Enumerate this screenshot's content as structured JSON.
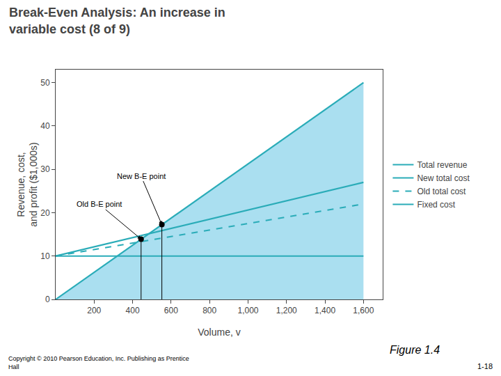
{
  "chart_data": {
    "type": "line",
    "title": "Break-Even Analysis: An increase in\nvariable cost (8 of 9)",
    "xlabel": "Volume, v",
    "ylabel": "Revenue, cost,\nand profit ($1,000s)",
    "x": [
      0,
      200,
      400,
      600,
      800,
      1000,
      1200,
      1400,
      1600
    ],
    "series": [
      {
        "type": "area",
        "color": "#AADFF0",
        "values": [
          0,
          6.25,
          12.5,
          18.75,
          25.0,
          31.25,
          37.5,
          43.75,
          50.0
        ]
      },
      {
        "name": "Total revenue",
        "type": "line",
        "color": "#2AACB8",
        "line_style": "solid",
        "values": [
          0,
          6.25,
          12.5,
          18.75,
          25.0,
          31.25,
          37.5,
          43.75,
          50.0
        ]
      },
      {
        "name": "New total cost",
        "type": "line",
        "color": "#2AACB8",
        "line_style": "solid",
        "values": [
          10,
          12.125,
          14.25,
          16.375,
          18.5,
          20.625,
          22.75,
          24.875,
          27.0
        ]
      },
      {
        "name": "Old total cost",
        "type": "line",
        "color": "#2AACB8",
        "line_style": "dashed",
        "values": [
          10,
          11.5,
          13.0,
          14.5,
          16.0,
          17.5,
          19.0,
          20.5,
          22.0
        ]
      },
      {
        "name": "Fixed cost",
        "type": "line",
        "color": "#2AACB8",
        "line_style": "solid",
        "values": [
          10,
          10,
          10,
          10,
          10,
          10,
          10,
          10,
          10
        ]
      },
      {
        "type": "scatter",
        "color": "#000000",
        "marker": "circle",
        "x": [
          444,
          552
        ],
        "values": [
          13.9,
          17.25
        ]
      }
    ],
    "annotations": [
      {
        "text": "Old B-E point",
        "x": 444,
        "y": 13.9
      },
      {
        "text": "New B-E point",
        "x": 552,
        "y": 17.25
      }
    ],
    "figure_label": "Figure 1.4",
    "copyright": "Copyright © 2010 Pearson Education, Inc. Publishing as Prentice\nHall",
    "page_number": "1-18",
    "xlim": [
      0,
      1700
    ],
    "xticks": [
      200,
      400,
      600,
      800,
      {
        "value": 1000,
        "label": "1,000"
      },
      {
        "value": 1200,
        "label": "1,200"
      },
      {
        "value": 1400,
        "label": "1,400"
      },
      {
        "value": 1600,
        "label": "1,600"
      }
    ],
    "ylim": [
      0,
      53
    ],
    "yticks": [
      0,
      10,
      20,
      30,
      40,
      50
    ],
    "grid": false,
    "legend": "right"
  }
}
